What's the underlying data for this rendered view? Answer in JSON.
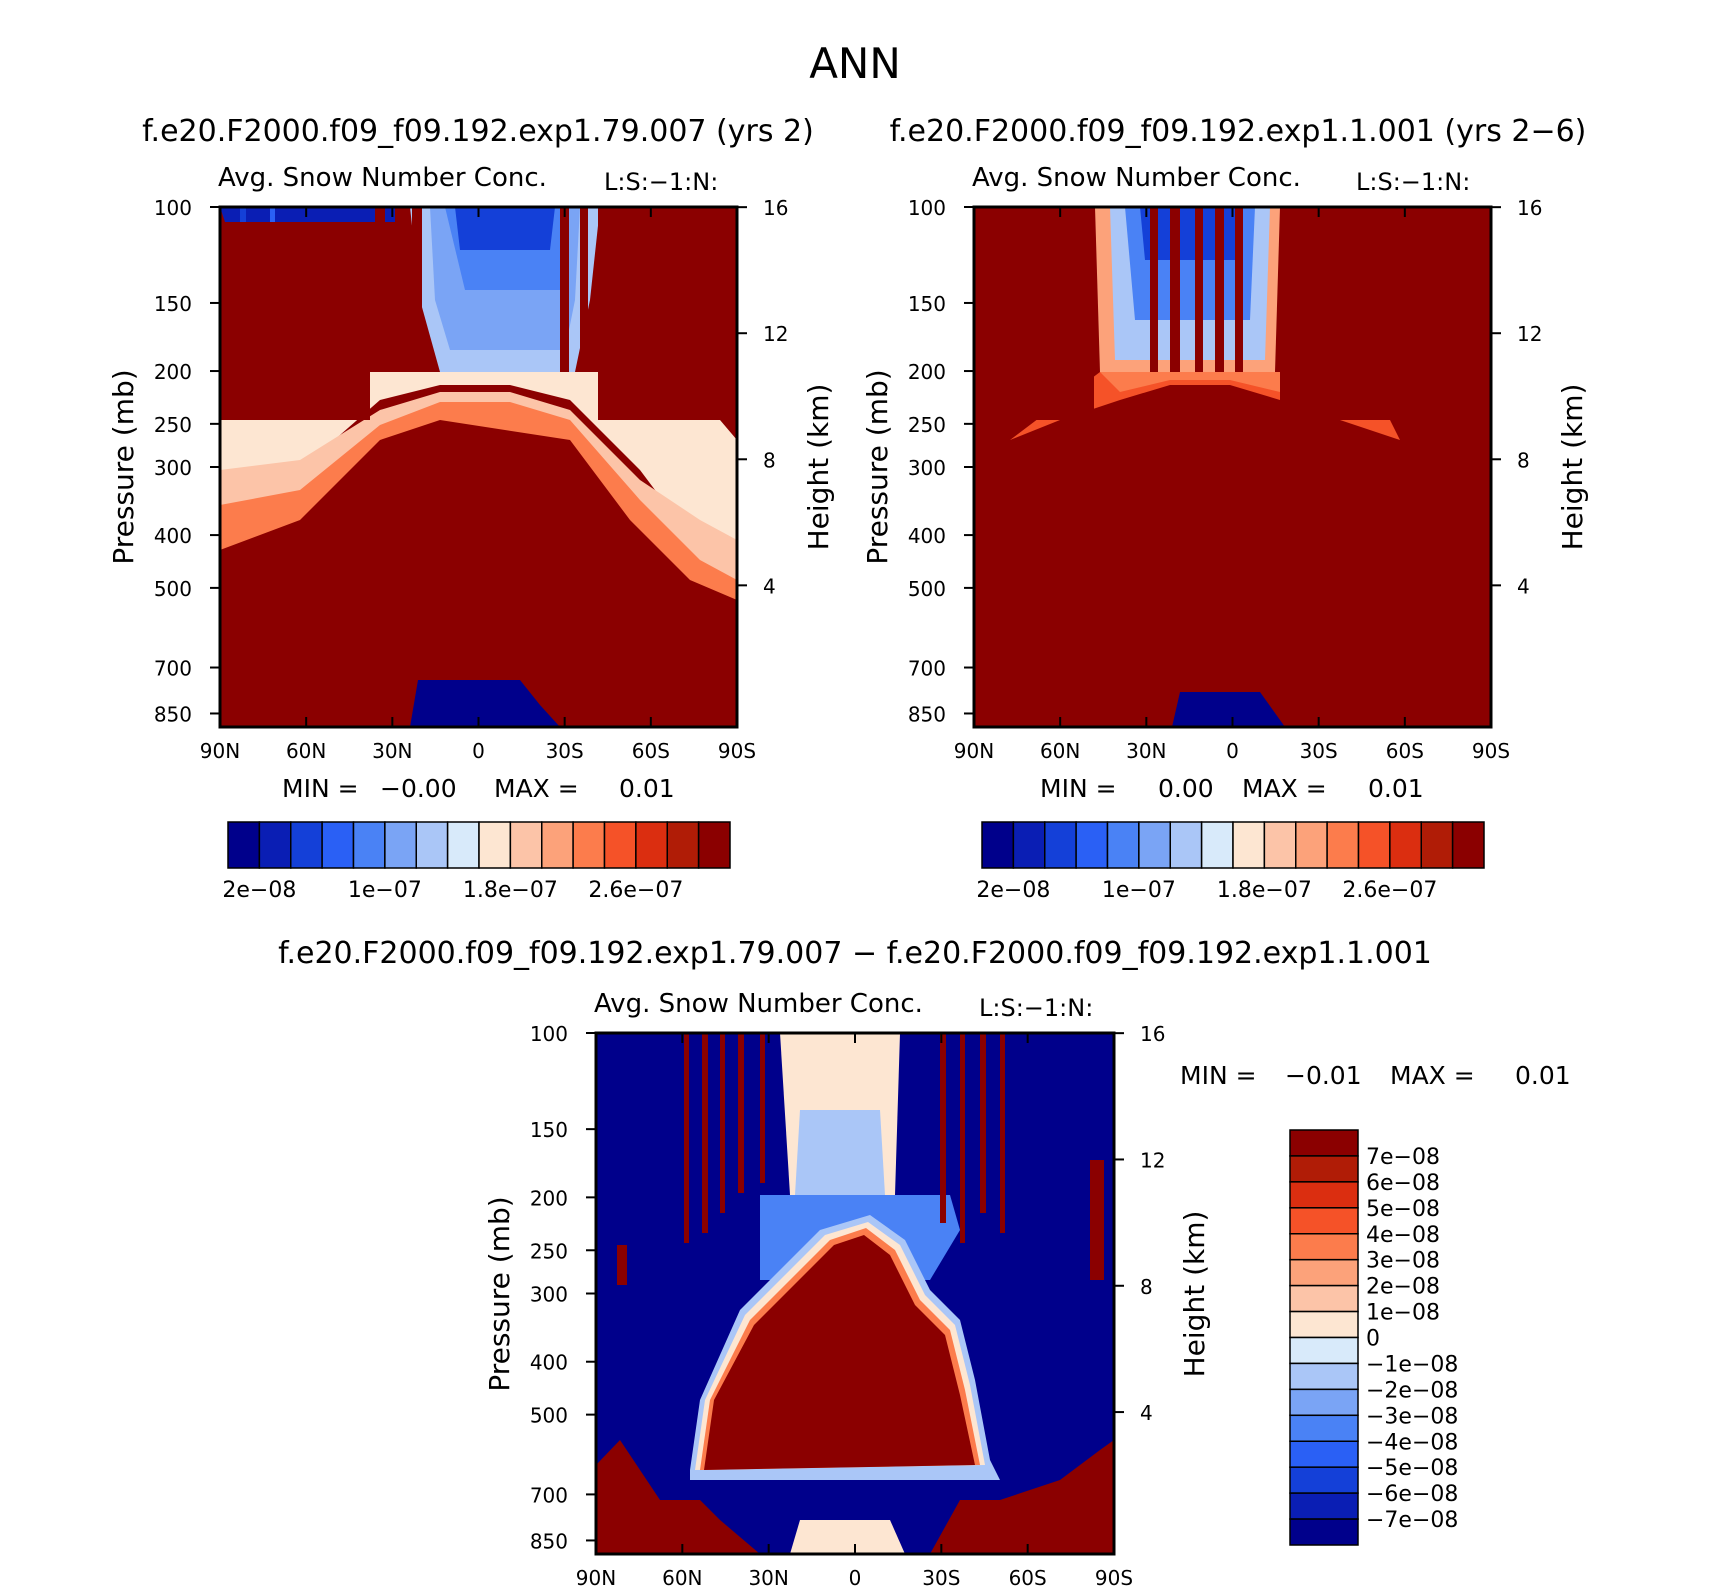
{
  "figure_title": "ANN",
  "chart_data": [
    {
      "type": "heatmap",
      "case_title": "f.e20.F2000.f09_f09.192.exp1.79.007 (yrs 2)",
      "title": "Avg. Snow Number Conc.",
      "units_label": "L:S:−1:N:",
      "ylabel": "Pressure (mb)",
      "ylabel_right": "Height (km)",
      "x_ticks": [
        "90N",
        "60N",
        "30N",
        "0",
        "30S",
        "60S",
        "90S"
      ],
      "y_ticks": [
        "100",
        "150",
        "200",
        "250",
        "300",
        "400",
        "500",
        "700",
        "850"
      ],
      "y_ticks_right": [
        "16",
        "12",
        "8",
        "4"
      ],
      "stats": {
        "min_label": "MIN =",
        "min_value": "−0.00",
        "max_label": "MAX =",
        "max_value": "0.01"
      },
      "colorbar_labels": [
        "2e−08",
        "1e−07",
        "1.8e−07",
        "2.6e−07"
      ]
    },
    {
      "type": "heatmap",
      "case_title": "f.e20.F2000.f09_f09.192.exp1.1.001 (yrs 2−6)",
      "title": "Avg. Snow Number Conc.",
      "units_label": "L:S:−1:N:",
      "ylabel": "Pressure (mb)",
      "ylabel_right": "Height (km)",
      "x_ticks": [
        "90N",
        "60N",
        "30N",
        "0",
        "30S",
        "60S",
        "90S"
      ],
      "y_ticks": [
        "100",
        "150",
        "200",
        "250",
        "300",
        "400",
        "500",
        "700",
        "850"
      ],
      "y_ticks_right": [
        "16",
        "12",
        "8",
        "4"
      ],
      "stats": {
        "min_label": "MIN =",
        "min_value": "0.00",
        "max_label": "MAX =",
        "max_value": "0.01"
      },
      "colorbar_labels": [
        "2e−08",
        "1e−07",
        "1.8e−07",
        "2.6e−07"
      ]
    },
    {
      "type": "heatmap",
      "case_title": "f.e20.F2000.f09_f09.192.exp1.79.007 − f.e20.F2000.f09_f09.192.exp1.1.001",
      "title": "Avg. Snow Number Conc.",
      "units_label": "L:S:−1:N:",
      "ylabel": "Pressure (mb)",
      "ylabel_right": "Height (km)",
      "x_ticks": [
        "90N",
        "60N",
        "30N",
        "0",
        "30S",
        "60S",
        "90S"
      ],
      "y_ticks": [
        "100",
        "150",
        "200",
        "250",
        "300",
        "400",
        "500",
        "700",
        "850"
      ],
      "y_ticks_right": [
        "16",
        "12",
        "8",
        "4"
      ],
      "stats": {
        "min_label": "MIN =",
        "min_value": "−0.01",
        "max_label": "MAX =",
        "max_value": "0.01"
      },
      "colorbar_labels": [
        "7e−08",
        "6e−08",
        "5e−08",
        "4e−08",
        "3e−08",
        "2e−08",
        "1e−08",
        "0",
        "−1e−08",
        "−2e−08",
        "−3e−08",
        "−4e−08",
        "−5e−08",
        "−6e−08",
        "−7e−08"
      ]
    }
  ],
  "palette": [
    "#00008b",
    "#0a1eb4",
    "#1440d8",
    "#2a60f5",
    "#4a82f5",
    "#7aa4f5",
    "#aac6f7",
    "#d8eafa",
    "#fde6d2",
    "#fcc4a8",
    "#fca27a",
    "#fc7c4c",
    "#f55228",
    "#db2e10",
    "#b01c06",
    "#8b0000"
  ],
  "colors": {
    "low": "#00008b",
    "high": "#8b0000",
    "neutral": "#fde6d2"
  }
}
